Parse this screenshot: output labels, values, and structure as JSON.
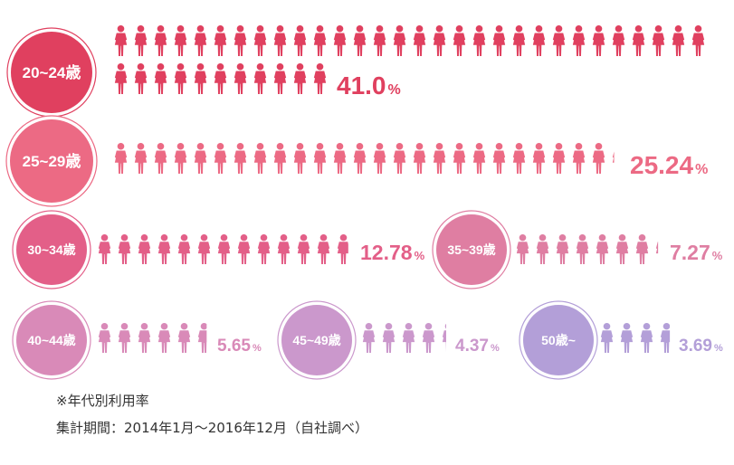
{
  "chart_data": {
    "type": "pictograph",
    "unit": "%",
    "series": [
      {
        "label": "20~24歳",
        "value": 41.0,
        "value_text": "41.0",
        "color": "#e0405f"
      },
      {
        "label": "25~29歳",
        "value": 25.24,
        "value_text": "25.24",
        "color": "#ec6a84"
      },
      {
        "label": "30~34歳",
        "value": 12.78,
        "value_text": "12.78",
        "color": "#e35f88"
      },
      {
        "label": "35~39歳",
        "value": 7.27,
        "value_text": "7.27",
        "color": "#df7ea2"
      },
      {
        "label": "40~44歳",
        "value": 5.65,
        "value_text": "5.65",
        "color": "#d98ab8"
      },
      {
        "label": "45~49歳",
        "value": 4.37,
        "value_text": "4.37",
        "color": "#cb98cc"
      },
      {
        "label": "50歳~",
        "value": 3.69,
        "value_text": "3.69",
        "color": "#b39fd8"
      }
    ]
  },
  "footnote": {
    "line1": "※年代別利用率",
    "line2": "集計期間：2014年1月～2016年12月（自社調べ）"
  }
}
